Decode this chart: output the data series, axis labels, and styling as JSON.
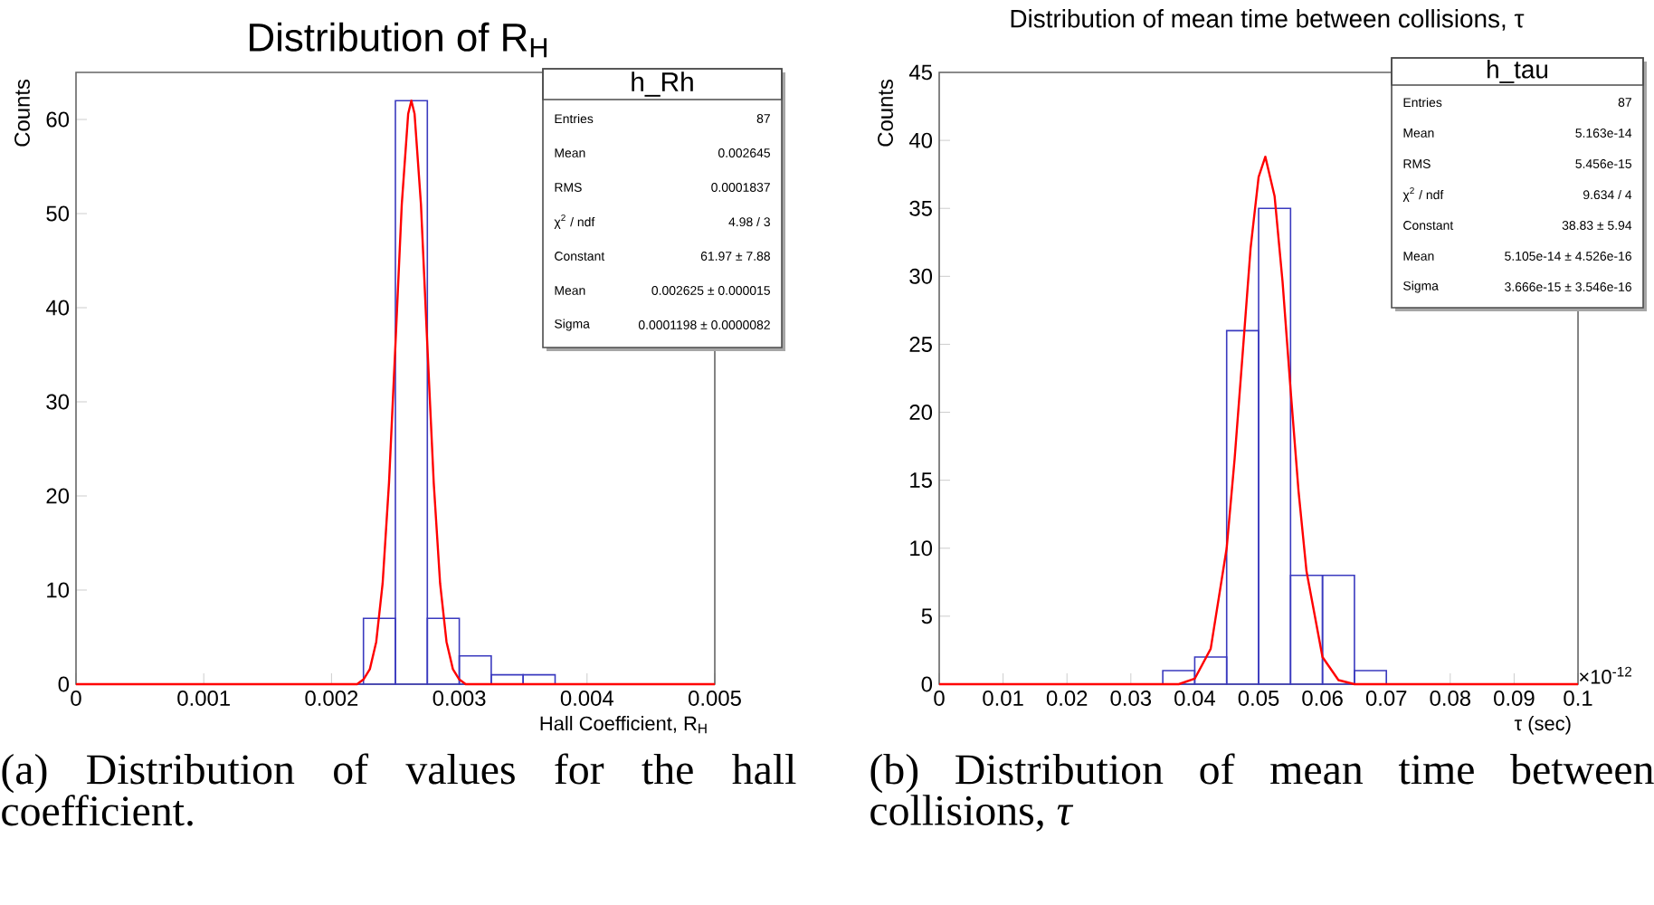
{
  "chart_data": [
    {
      "type": "histogram",
      "title": "Distribution of R$_{H}$",
      "xlabel": "Hall Coefficient, R$_{H}$",
      "ylabel": "Counts",
      "bins": [
        0,
        0.00025,
        0.0005,
        0.00075,
        0.001,
        0.00125,
        0.0015,
        0.00175,
        0.002,
        0.00225,
        0.0025,
        0.00275,
        0.003,
        0.00325,
        0.0035,
        0.00375,
        0.004,
        0.00425,
        0.0045,
        0.00475,
        0.005
      ],
      "values": [
        0,
        0,
        0,
        0,
        0,
        0,
        0,
        0,
        0,
        7,
        62,
        7,
        3,
        1,
        1,
        0,
        0,
        0,
        0,
        0
      ],
      "color": "#3a3abf",
      "series": [
        {
          "type": "line",
          "color": "#ff0000",
          "x": [
            0,
            0.0022,
            0.00225,
            0.0023,
            0.00235,
            0.0024,
            0.00245,
            0.0025,
            0.00255,
            0.0026,
            0.002625,
            0.00265,
            0.0027,
            0.00275,
            0.0028,
            0.00285,
            0.0029,
            0.00295,
            0.003,
            0.00305,
            0.005
          ],
          "values": [
            0,
            0,
            0.5,
            1.6,
            4.5,
            10.7,
            21.4,
            36,
            51,
            60.6,
            62,
            60.6,
            51,
            36,
            21.4,
            10.7,
            4.5,
            1.6,
            0.5,
            0,
            0
          ]
        }
      ],
      "xlim": [
        0,
        0.005
      ],
      "ylim": [
        0,
        65
      ],
      "xticks": [
        0,
        0.001,
        0.002,
        0.003,
        0.004,
        0.005
      ],
      "yticks": [
        0,
        10,
        20,
        30,
        40,
        50,
        60
      ],
      "annotations": [
        "(a) Distribution of values for the hall coefficient.",
        "h_Rh",
        "Entries",
        "87",
        "Mean",
        "0.002645",
        "RMS",
        "0.0001837",
        "χ$^{2}$ / ndf",
        "4.98 / 3",
        "Constant",
        "61.97 ± 7.88",
        "Mean",
        "0.002625 ± 0.000015",
        "Sigma",
        "0.0001198 ± 0.0000082"
      ]
    },
    {
      "type": "histogram",
      "title": "Distribution of mean time between collisions, τ",
      "xlabel": "τ (sec)",
      "ylabel": "Counts",
      "bins": [
        0,
        0.005,
        0.01,
        0.015,
        0.02,
        0.025,
        0.03,
        0.035,
        0.04,
        0.045,
        0.05,
        0.055,
        0.06,
        0.065,
        0.07,
        0.075,
        0.08,
        0.085,
        0.09,
        0.095,
        0.1
      ],
      "values": [
        0,
        0,
        0,
        0,
        0,
        0,
        0,
        1,
        2,
        26,
        35,
        8,
        8,
        1,
        0,
        0,
        0,
        0,
        0,
        0
      ],
      "color": "#3a3abf",
      "series": [
        {
          "type": "line",
          "color": "#ff0000",
          "x": [
            0,
            0.0375,
            0.04,
            0.0425,
            0.045,
            0.04625,
            0.0475,
            0.04875,
            0.05,
            0.05105,
            0.0525,
            0.05375,
            0.055,
            0.05625,
            0.0575,
            0.06,
            0.0625,
            0.065,
            0.1
          ],
          "values": [
            0,
            0,
            0.4,
            2.6,
            10,
            16.6,
            24.3,
            32.1,
            37.3,
            38.8,
            35.9,
            29.6,
            21.7,
            14.2,
            8.3,
            2,
            0.3,
            0,
            0
          ]
        }
      ],
      "xlim": [
        0,
        0.1
      ],
      "ylim": [
        0,
        45
      ],
      "xticks": [
        0,
        0.01,
        0.02,
        0.03,
        0.04,
        0.05,
        0.06,
        0.07,
        0.08,
        0.09,
        0.1
      ],
      "yticks": [
        0,
        5,
        10,
        15,
        20,
        25,
        30,
        35,
        40,
        45
      ],
      "annotations": [
        "(b) Distribution of mean time between collisions, *τ*",
        "h_tau",
        "Entries",
        "87",
        "Mean",
        "5.163e-14",
        "RMS",
        "5.456e-15",
        "χ$^{2}$ / ndf",
        "9.634 / 4",
        "Constant",
        "38.83 ± 5.94",
        "Mean",
        "5.105e-14 ± 4.526e-16",
        "Sigma",
        "3.666e-15 ± 3.546e-16",
        "×10$^{-12}$"
      ]
    }
  ]
}
